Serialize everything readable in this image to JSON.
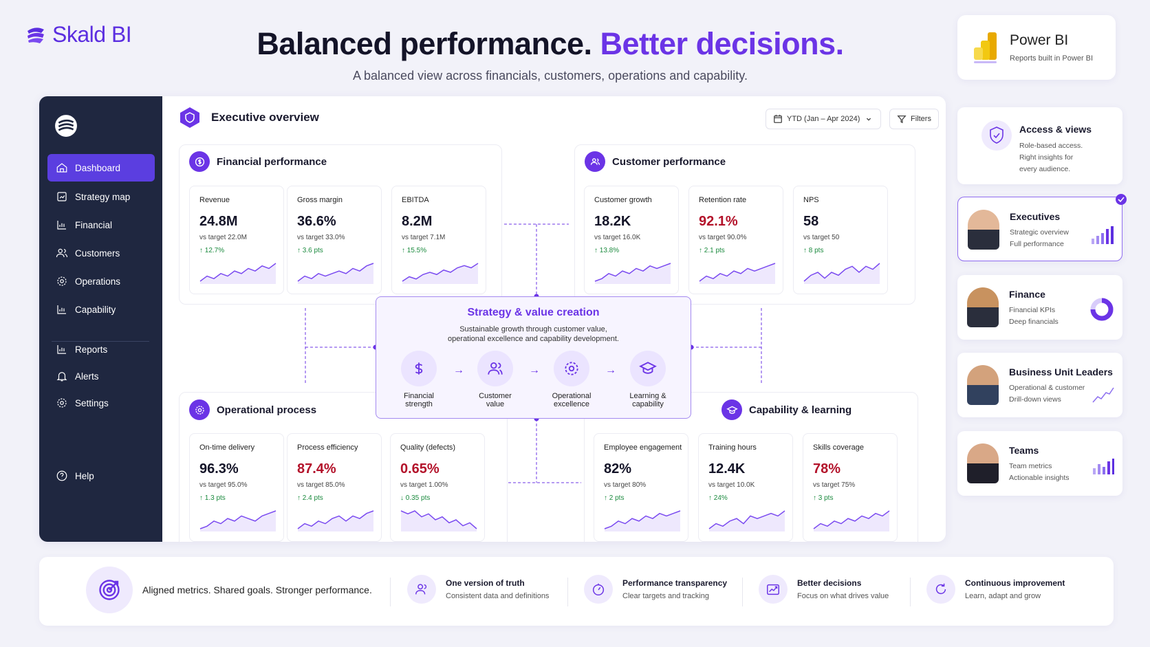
{
  "brand": {
    "name": "Skald BI"
  },
  "hero": {
    "title_main": "Balanced performance. ",
    "title_accent": "Better decisions.",
    "subtitle": "A balanced view across financials, customers, operations and capability."
  },
  "powerbi": {
    "title": "Power BI",
    "subtitle": "Reports built in Power BI"
  },
  "dashboard": {
    "title": "Executive overview",
    "date_filter": "YTD (Jan – Apr 2024)",
    "filters_label": "Filters"
  },
  "sidebar": {
    "items": [
      {
        "label": "Dashboard",
        "icon": "home-icon"
      },
      {
        "label": "Strategy map",
        "icon": "map-icon"
      },
      {
        "label": "Financial",
        "icon": "chart-icon"
      },
      {
        "label": "Customers",
        "icon": "users-icon"
      },
      {
        "label": "Operations",
        "icon": "gear-icon"
      },
      {
        "label": "Capability",
        "icon": "chart-icon"
      },
      {
        "label": "Reports",
        "icon": "report-icon"
      },
      {
        "label": "Alerts",
        "icon": "bell-icon"
      },
      {
        "label": "Settings",
        "icon": "settings-icon"
      },
      {
        "label": "Help",
        "icon": "help-icon"
      }
    ]
  },
  "sections": {
    "financial": {
      "title": "Financial performance",
      "kpis": [
        {
          "label": "Revenue",
          "value": "24.8M",
          "target": "vs target 22.0M",
          "change": "↑ 12.7%",
          "trend": [
            3,
            5,
            4,
            6,
            5,
            7,
            6,
            8,
            7,
            9,
            8,
            10
          ]
        },
        {
          "label": "Gross margin",
          "value": "36.6%",
          "target": "vs target 33.0%",
          "change": "↑ 3.6 pts",
          "trend": [
            3,
            5,
            4,
            6,
            5,
            6,
            7,
            6,
            8,
            7,
            9,
            10
          ]
        },
        {
          "label": "EBITDA",
          "value": "8.2M",
          "target": "vs target 7.1M",
          "change": "↑ 15.5%",
          "trend": [
            2,
            4,
            3,
            5,
            6,
            5,
            7,
            6,
            8,
            9,
            8,
            10
          ]
        }
      ]
    },
    "customer": {
      "title": "Customer performance",
      "kpis": [
        {
          "label": "Customer growth",
          "value": "18.2K",
          "target": "vs target 16.0K",
          "change": "↑ 13.8%",
          "trend": [
            3,
            4,
            6,
            5,
            7,
            6,
            8,
            7,
            9,
            8,
            9,
            10
          ]
        },
        {
          "label": "Retention rate",
          "value": "92.1%",
          "target": "vs target 90.0%",
          "change": "↑ 2.1 pts",
          "red": true,
          "trend": [
            3,
            5,
            4,
            6,
            5,
            7,
            6,
            8,
            7,
            8,
            9,
            10
          ]
        },
        {
          "label": "NPS",
          "value": "58",
          "target": "vs target 50",
          "change": "↑ 8 pts",
          "trend": [
            3,
            5,
            6,
            4,
            6,
            5,
            7,
            8,
            6,
            8,
            7,
            9
          ]
        }
      ]
    },
    "operational": {
      "title": "Operational process",
      "kpis": [
        {
          "label": "On-time delivery",
          "value": "96.3%",
          "target": "vs target 95.0%",
          "change": "↑ 1.3 pts",
          "trend": [
            3,
            4,
            6,
            5,
            7,
            6,
            8,
            7,
            6,
            8,
            9,
            10
          ]
        },
        {
          "label": "Process efficiency",
          "value": "87.4%",
          "target": "vs target 85.0%",
          "change": "↑ 2.4 pts",
          "red": true,
          "trend": [
            3,
            5,
            4,
            6,
            5,
            7,
            8,
            6,
            8,
            7,
            9,
            10
          ]
        },
        {
          "label": "Quality (defects)",
          "value": "0.65%",
          "target": "vs target 1.00%",
          "change": "↓ 0.35 pts",
          "red": true,
          "trend": [
            9,
            8,
            9,
            7,
            8,
            6,
            7,
            5,
            6,
            4,
            5,
            3
          ]
        }
      ]
    },
    "capability": {
      "title": "Capability & learning",
      "kpis": [
        {
          "label": "Employee engagement",
          "value": "82%",
          "target": "vs target 80%",
          "change": "↑ 2 pts",
          "trend": [
            3,
            4,
            6,
            5,
            7,
            6,
            8,
            7,
            9,
            8,
            9,
            10
          ]
        },
        {
          "label": "Training hours",
          "value": "12.4K",
          "target": "vs target 10.0K",
          "change": "↑ 24%",
          "trend": [
            3,
            5,
            4,
            6,
            7,
            5,
            8,
            7,
            8,
            9,
            8,
            10
          ]
        },
        {
          "label": "Skills coverage",
          "value": "78%",
          "target": "vs target 75%",
          "change": "↑ 3 pts",
          "red": true,
          "trend": [
            3,
            5,
            4,
            6,
            5,
            7,
            6,
            8,
            7,
            9,
            8,
            10
          ]
        }
      ]
    }
  },
  "strategy": {
    "title": "Strategy & value creation",
    "desc1": "Sustainable growth through customer value,",
    "desc2": "operational excellence and capability development.",
    "nodes": [
      {
        "l1": "Financial",
        "l2": "strength"
      },
      {
        "l1": "Customer",
        "l2": "value"
      },
      {
        "l1": "Operational",
        "l2": "excellence"
      },
      {
        "l1": "Learning &",
        "l2": "capability"
      }
    ]
  },
  "right_panel": {
    "access": {
      "title": "Access & views",
      "l1": "Role-based access.",
      "l2": "Right insights for",
      "l3": "every audience."
    },
    "roles": [
      {
        "title": "Executives",
        "l1": "Strategic overview",
        "l2": "Full performance"
      },
      {
        "title": "Finance",
        "l1": "Financial KPIs",
        "l2": "Deep financials"
      },
      {
        "title": "Business Unit Leaders",
        "l1": "Operational & customer",
        "l2": "Drill-down views"
      },
      {
        "title": "Teams",
        "l1": "Team metrics",
        "l2": "Actionable insights"
      }
    ]
  },
  "footer": {
    "headline": "Aligned metrics. Shared goals. Stronger performance.",
    "items": [
      {
        "title": "One version of truth",
        "sub": "Consistent data and definitions"
      },
      {
        "title": "Performance transparency",
        "sub": "Clear targets and tracking"
      },
      {
        "title": "Better decisions",
        "sub": "Focus on what drives value"
      },
      {
        "title": "Continuous improvement",
        "sub": "Learn, adapt and grow"
      }
    ]
  },
  "colors": {
    "accent": "#6b34e6",
    "sidebar": "#1f2740",
    "positive": "#1b8a3e",
    "negative": "#b3122a"
  }
}
